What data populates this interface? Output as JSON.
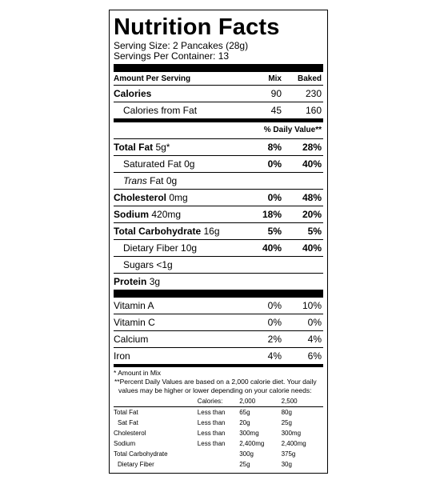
{
  "title": "Nutrition Facts",
  "serving_size": "Serving Size: 2 Pancakes (28g)",
  "servings_per_container": "Servings Per Container: 13",
  "header": {
    "amount_per_serving": "Amount Per Serving",
    "mix": "Mix",
    "baked": "Baked"
  },
  "calories": {
    "label": "Calories",
    "mix": "90",
    "baked": "230"
  },
  "calories_from_fat": {
    "label": "Calories from Fat",
    "mix": "45",
    "baked": "160"
  },
  "daily_value_header": "% Daily Value**",
  "nutrients": {
    "total_fat": {
      "label": "Total Fat",
      "amount": "5g*",
      "mix": "8%",
      "baked": "28%"
    },
    "saturated_fat": {
      "label": "Saturated Fat",
      "amount": "0g",
      "mix": "0%",
      "baked": "40%"
    },
    "trans_fat": {
      "label": "Trans",
      "label_suffix": "Fat",
      "amount": "0g"
    },
    "cholesterol": {
      "label": "Cholesterol",
      "amount": "0mg",
      "mix": "0%",
      "baked": "48%"
    },
    "sodium": {
      "label": "Sodium",
      "amount": "420mg",
      "mix": "18%",
      "baked": "20%"
    },
    "total_carbohydrate": {
      "label": "Total Carbohydrate",
      "amount": "16g",
      "mix": "5%",
      "baked": "5%"
    },
    "dietary_fiber": {
      "label": "Dietary Fiber",
      "amount": "10g",
      "mix": "40%",
      "baked": "40%"
    },
    "sugars": {
      "label": "Sugars",
      "amount": "<1g"
    },
    "protein": {
      "label": "Protein",
      "amount": "3g"
    }
  },
  "vitamins": {
    "vitamin_a": {
      "label": "Vitamin A",
      "mix": "0%",
      "baked": "10%"
    },
    "vitamin_c": {
      "label": "Vitamin C",
      "mix": "0%",
      "baked": "0%"
    },
    "calcium": {
      "label": "Calcium",
      "mix": "2%",
      "baked": "4%"
    },
    "iron": {
      "label": "Iron",
      "mix": "4%",
      "baked": "6%"
    }
  },
  "footnotes": {
    "amount_in_mix": "* Amount in Mix",
    "daily_values": "**Percent Daily Values are based on a 2,000 calorie diet. Your daily values may be higher or lower depending on your calorie needs:"
  },
  "reference_table": {
    "calories_label": "Calories:",
    "col_2000": "2,000",
    "col_2500": "2,500",
    "rows": [
      {
        "name": "Total Fat",
        "qualifier": "Less than",
        "v2000": "65g",
        "v2500": "80g"
      },
      {
        "name": "Sat Fat",
        "qualifier": "Less than",
        "v2000": "20g",
        "v2500": "25g"
      },
      {
        "name": "Cholesterol",
        "qualifier": "Less than",
        "v2000": "300mg",
        "v2500": "300mg"
      },
      {
        "name": "Sodium",
        "qualifier": "Less than",
        "v2000": "2,400mg",
        "v2500": "2,400mg"
      },
      {
        "name": "Total Carbohydrate",
        "qualifier": "",
        "v2000": "300g",
        "v2500": "375g"
      },
      {
        "name": "Dietary Fiber",
        "qualifier": "",
        "v2000": "25g",
        "v2500": "30g"
      }
    ]
  }
}
